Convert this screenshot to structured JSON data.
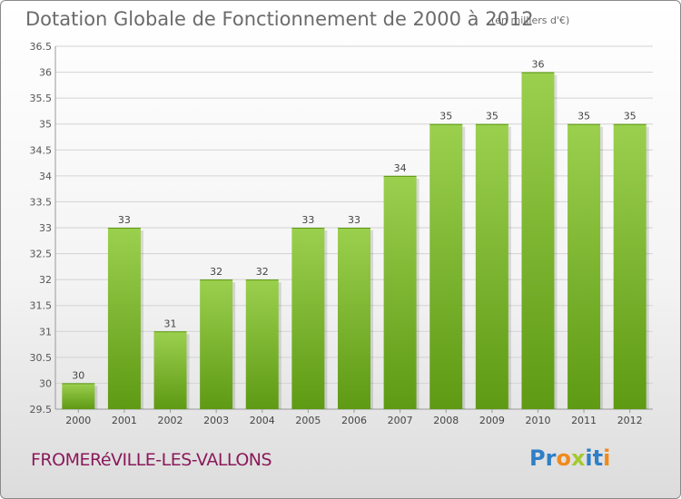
{
  "chart_data": {
    "type": "bar",
    "title": "Dotation Globale de Fonctionnement de 2000 à 2012",
    "subtitle": "(en milliers d'€)",
    "categories": [
      "2000",
      "2001",
      "2002",
      "2003",
      "2004",
      "2005",
      "2006",
      "2007",
      "2008",
      "2009",
      "2010",
      "2011",
      "2012"
    ],
    "values": [
      30,
      33,
      31,
      32,
      32,
      33,
      33,
      34,
      35,
      35,
      36,
      35,
      35
    ],
    "ylim": [
      29.5,
      36.5
    ],
    "yticks": [
      "29.5",
      "30",
      "30.5",
      "31",
      "31.5",
      "32",
      "32.5",
      "33",
      "33.5",
      "34",
      "34.5",
      "35",
      "35.5",
      "36",
      "36.5"
    ],
    "xlabel": "",
    "ylabel": "",
    "grid": true,
    "colors": {
      "bar_light": "#9bd04e",
      "bar_dark": "#5e9a14",
      "grid": "#d3d3d3",
      "axis": "#999999"
    }
  },
  "footer": {
    "town": "FROMERéVILLE-LES-VALLONS",
    "logo_letters": [
      "P",
      "r",
      "o",
      "x",
      "i",
      "t",
      "i"
    ],
    "logo_colors": [
      "#2f7fc8",
      "#2f7fc8",
      "#f08a1c",
      "#a3c931",
      "#2f7fc8",
      "#2f7fc8",
      "#f08a1c"
    ]
  }
}
